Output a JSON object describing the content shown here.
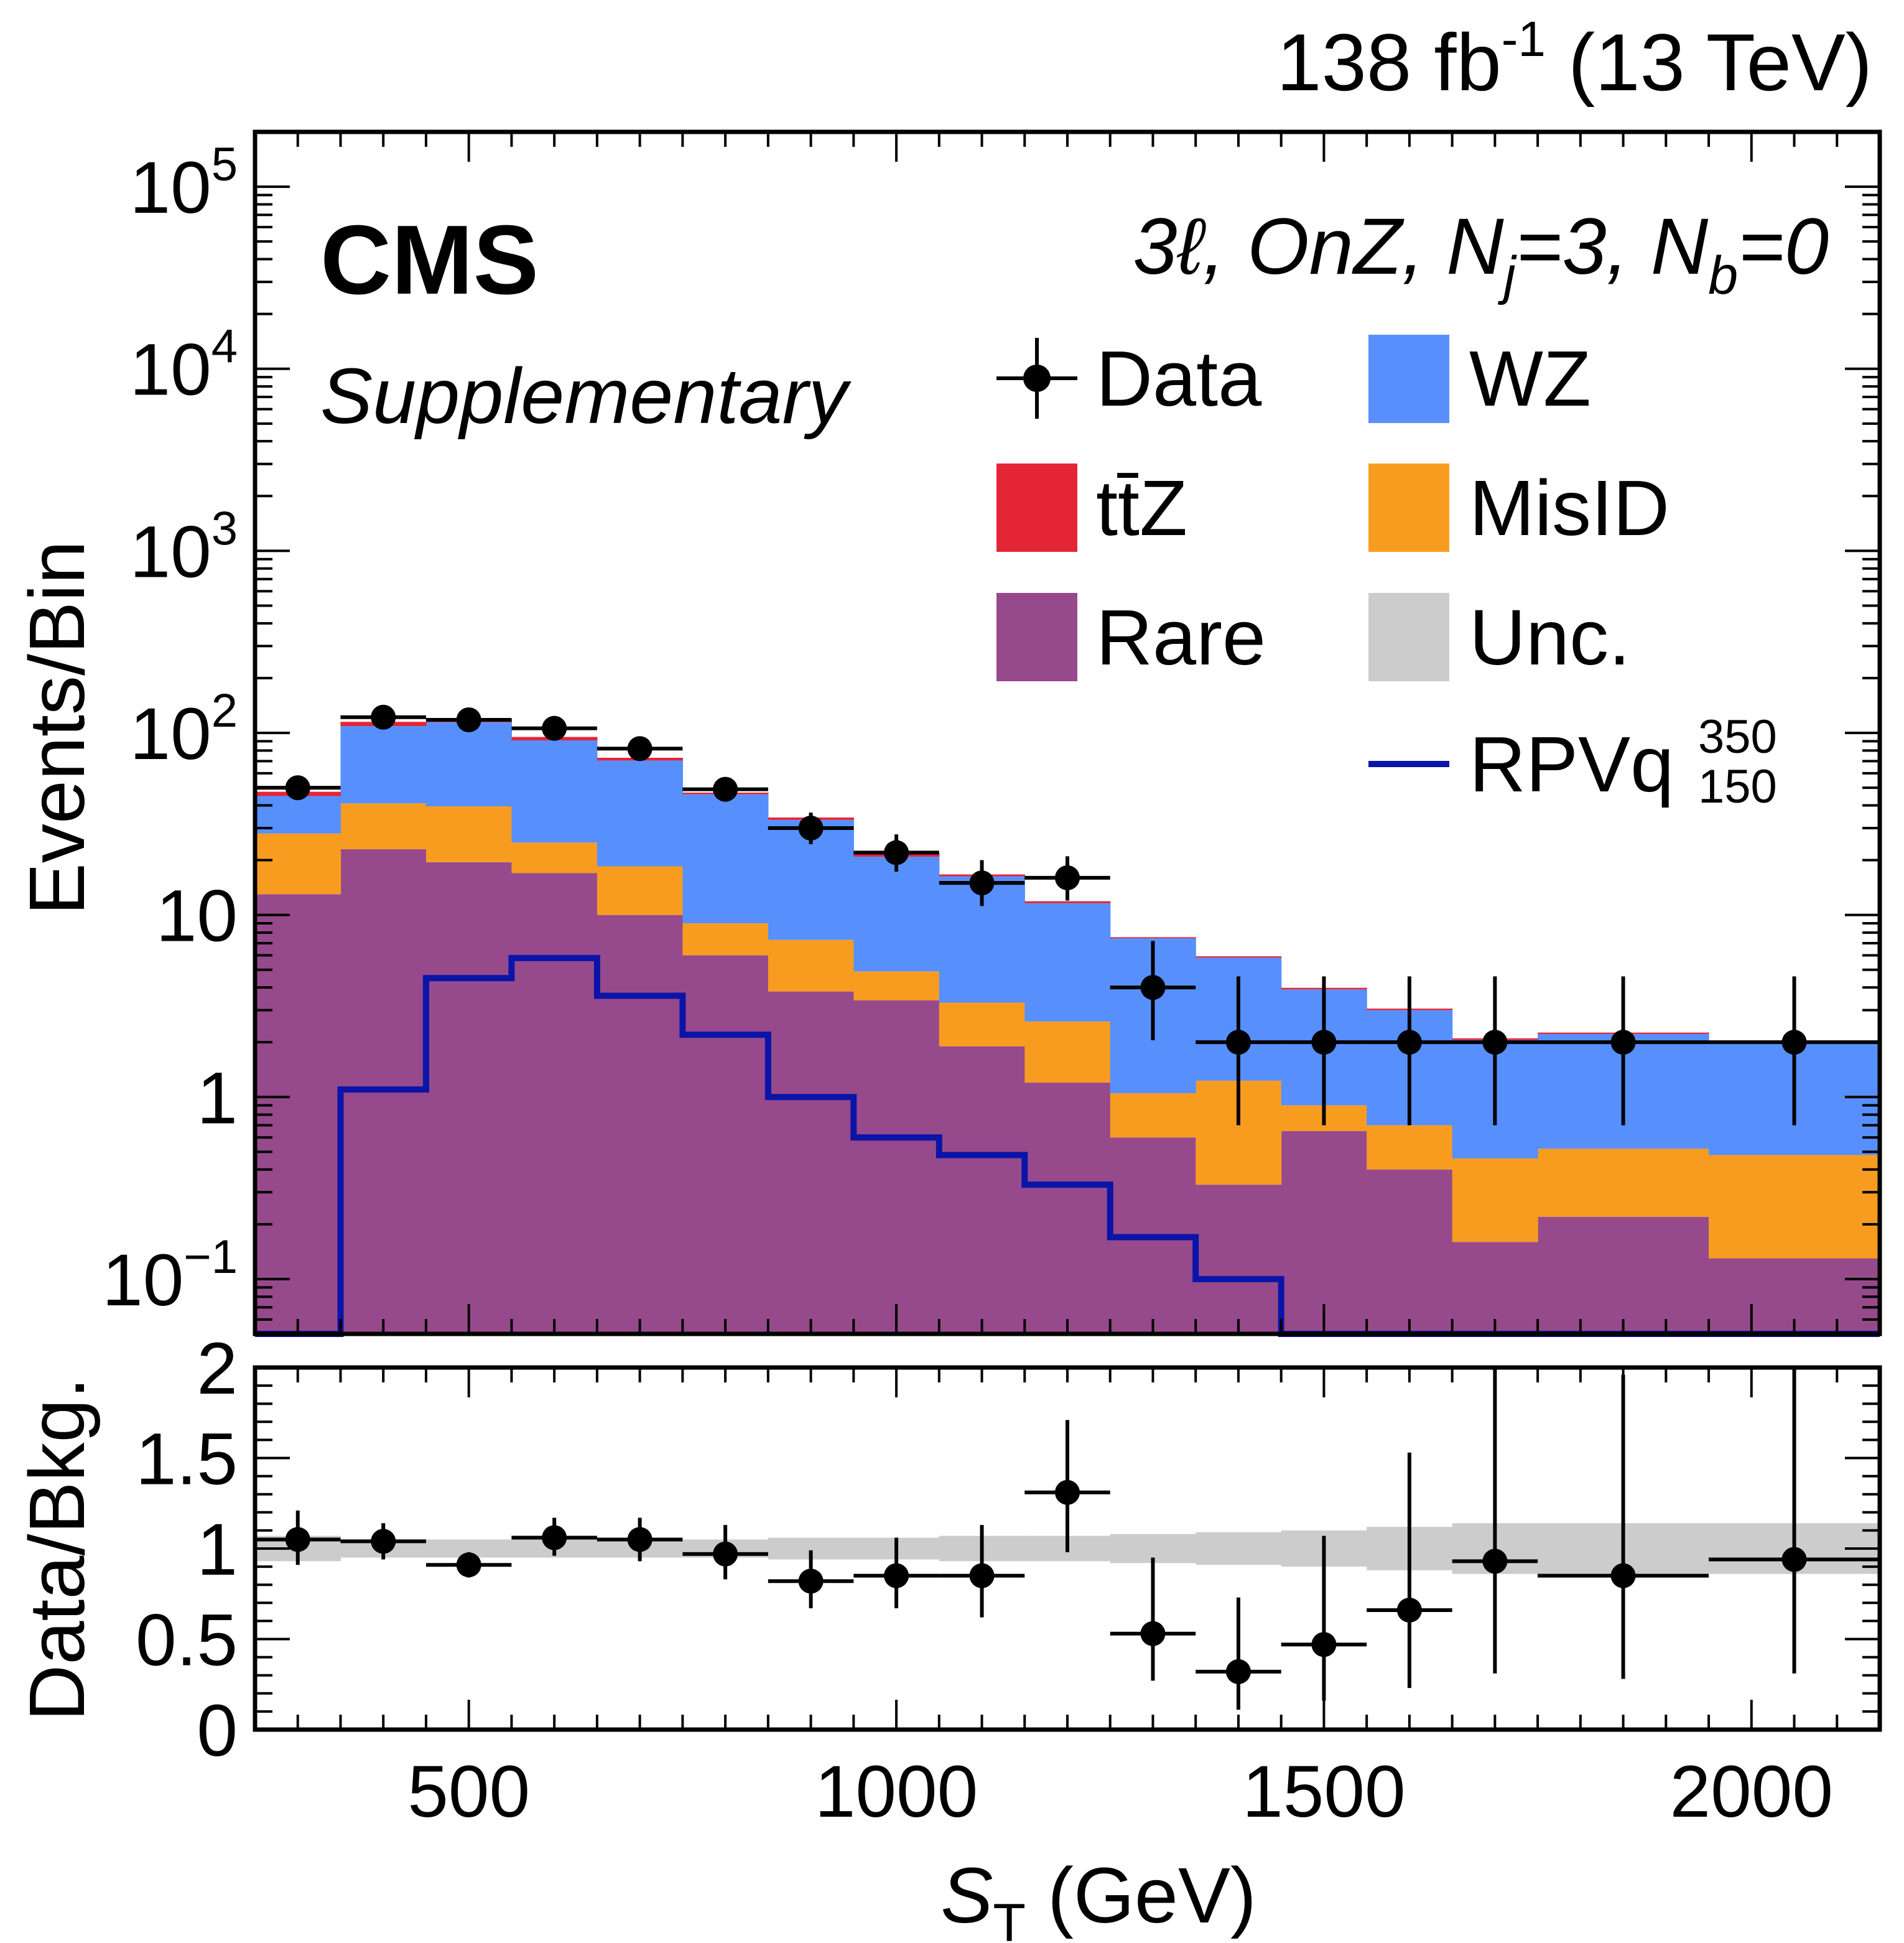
{
  "header": {
    "lumi_value": "138 fb",
    "lumi_exp": "-1",
    "energy": "(13 TeV)",
    "experiment": "CMS",
    "status": "Supplementary",
    "region": "3ℓ, OnZ, N",
    "region_j_sub": "j",
    "region_mid": "=3, N",
    "region_b_sub": "b",
    "region_end": "=0"
  },
  "legend": {
    "data": "Data",
    "wz": "WZ",
    "ttz": "tt̄Z",
    "misid": "MisID",
    "rare": "Rare",
    "unc": "Unc.",
    "signal": "RPVq",
    "signal_sup": "350",
    "signal_sub": "150"
  },
  "colors": {
    "wz": "#5790fc",
    "ttz": "#e42536",
    "misid": "#f89c20",
    "rare": "#964a8b",
    "unc": "#cccccc",
    "signal": "#0a14a8",
    "data": "#000000"
  },
  "chart_data": [
    {
      "type": "bar",
      "stacked": true,
      "log_y": true,
      "ylabel": "Events/Bin",
      "ylim": [
        0.05,
        200000
      ],
      "xlim": [
        250,
        2150
      ],
      "y_ticks": [
        "10^-1",
        "1",
        "10",
        "10^2",
        "10^3",
        "10^4",
        "10^5"
      ],
      "bin_edges": [
        250,
        350,
        450,
        550,
        650,
        750,
        850,
        950,
        1050,
        1150,
        1250,
        1350,
        1450,
        1550,
        1650,
        1750,
        1950,
        2150
      ],
      "series": [
        {
          "name": "Rare",
          "values": [
            13,
            23,
            19.5,
            17,
            10,
            6,
            3.8,
            3.4,
            1.9,
            1.2,
            0.6,
            0.33,
            0.65,
            0.4,
            0.16,
            0.22,
            0.13
          ]
        },
        {
          "name": "MisID",
          "values": [
            15,
            18,
            20,
            8,
            8.5,
            3,
            3.5,
            1.5,
            1.4,
            1.4,
            0.45,
            0.9,
            0.25,
            0.3,
            0.3,
            0.3,
            0.35
          ]
        },
        {
          "name": "WZ",
          "values": [
            17,
            68,
            75,
            66,
            52,
            37,
            26,
            16,
            13,
            9,
            6.4,
            4.6,
            3.0,
            2.3,
            1.6,
            1.7,
            1.5
          ]
        },
        {
          "name": "tt̄Z",
          "values": [
            2.5,
            6,
            5,
            4,
            2.5,
            1.0,
            1.0,
            0.8,
            0.4,
            0.3,
            0.1,
            0.1,
            0.08,
            0.06,
            0.04,
            0.04,
            0.03
          ]
        }
      ],
      "signal": {
        "name": "RPVq_150^350",
        "values": [
          0.001,
          1.1,
          4.5,
          5.8,
          3.6,
          2.2,
          1.0,
          0.6,
          0.48,
          0.33,
          0.17,
          0.1,
          0.001,
          0.001,
          0.001,
          0.001,
          0.001
        ]
      },
      "data": {
        "x": [
          300,
          400,
          500,
          600,
          700,
          800,
          900,
          1000,
          1100,
          1200,
          1300,
          1400,
          1500,
          1600,
          1700,
          1850,
          2050
        ],
        "y": [
          50,
          122,
          118,
          106,
          82,
          49,
          30,
          22,
          15,
          16,
          4,
          2,
          2,
          2,
          2,
          2,
          2
        ],
        "yerr_low": [
          7,
          11,
          11,
          10,
          9,
          7,
          5.5,
          4.7,
          3.8,
          4,
          1.95,
          1.3,
          1.3,
          1.3,
          1.3,
          1.3,
          1.3
        ],
        "yerr_high": [
          8,
          12,
          12,
          11,
          10,
          8,
          6.5,
          5.7,
          5,
          5,
          3.2,
          2.6,
          2.6,
          2.6,
          2.6,
          2.6,
          2.6
        ]
      }
    },
    {
      "type": "scatter",
      "xlabel": "S_T (GeV)",
      "ylabel": "Data/Bkg.",
      "ylim": [
        0,
        2
      ],
      "xlim": [
        250,
        2150
      ],
      "x_ticks": [
        500,
        1000,
        1500,
        2000
      ],
      "y_ticks": [
        "0",
        "0.5",
        "1",
        "1.5",
        "2"
      ],
      "unc_band": {
        "lo": [
          0.93,
          0.95,
          0.95,
          0.95,
          0.95,
          0.95,
          0.94,
          0.94,
          0.93,
          0.93,
          0.92,
          0.91,
          0.9,
          0.88,
          0.86,
          0.86,
          0.86
        ],
        "hi": [
          1.07,
          1.05,
          1.05,
          1.05,
          1.05,
          1.05,
          1.06,
          1.06,
          1.07,
          1.07,
          1.08,
          1.09,
          1.1,
          1.12,
          1.14,
          1.14,
          1.14
        ]
      },
      "ratio": {
        "x": [
          300,
          400,
          500,
          600,
          700,
          800,
          900,
          1000,
          1100,
          1200,
          1300,
          1400,
          1500,
          1600,
          1700,
          1850,
          2050
        ],
        "y": [
          1.05,
          1.04,
          0.91,
          1.06,
          1.05,
          0.97,
          0.82,
          0.85,
          0.85,
          1.31,
          0.53,
          0.32,
          0.47,
          0.66,
          0.93,
          0.85,
          0.94
        ],
        "err_low": [
          0.14,
          0.1,
          0.07,
          0.1,
          0.12,
          0.14,
          0.15,
          0.18,
          0.23,
          0.33,
          0.26,
          0.21,
          0.31,
          0.43,
          0.62,
          0.57,
          0.63
        ],
        "err_high": [
          0.16,
          0.1,
          0.07,
          0.11,
          0.12,
          0.16,
          0.17,
          0.21,
          0.28,
          0.4,
          0.42,
          0.41,
          0.6,
          0.87,
          1.25,
          1.11,
          1.22
        ]
      }
    }
  ]
}
